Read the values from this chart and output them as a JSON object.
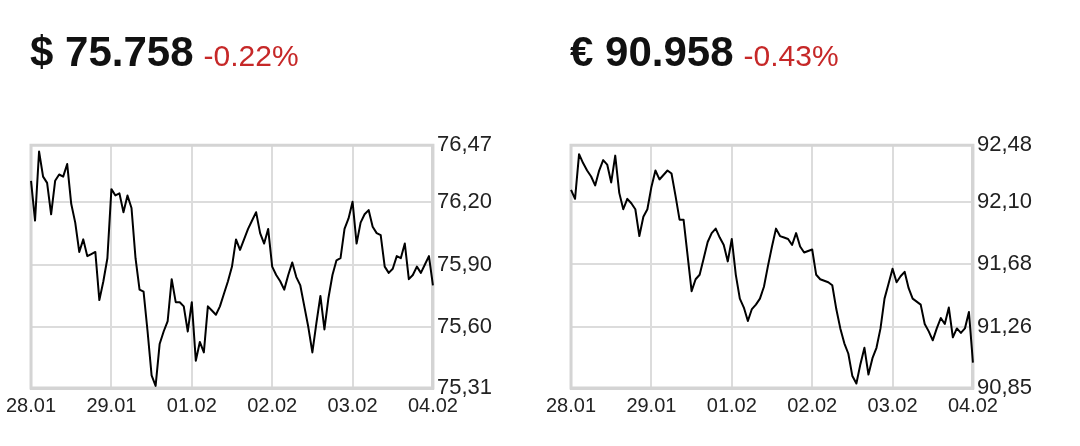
{
  "chart_data": [
    {
      "type": "line",
      "title": "$ 75.758",
      "subtitle": "-0.22%",
      "grid": true,
      "legend": false,
      "marker": "none",
      "categories": [
        "28.01",
        null,
        null,
        null,
        null,
        null,
        null,
        null,
        null,
        null,
        null,
        null,
        null,
        null,
        null,
        null,
        null,
        null,
        null,
        null,
        "29.01",
        null,
        null,
        null,
        null,
        null,
        null,
        null,
        null,
        null,
        null,
        null,
        null,
        null,
        null,
        null,
        null,
        null,
        null,
        null,
        "01.02",
        null,
        null,
        null,
        null,
        null,
        null,
        null,
        null,
        null,
        null,
        null,
        null,
        null,
        null,
        null,
        null,
        null,
        null,
        null,
        "02.02",
        null,
        null,
        null,
        null,
        null,
        null,
        null,
        null,
        null,
        null,
        null,
        null,
        null,
        null,
        null,
        null,
        null,
        null,
        null,
        "03.02",
        null,
        null,
        null,
        null,
        null,
        null,
        null,
        null,
        null,
        null,
        null,
        null,
        null,
        null,
        null,
        null,
        null,
        null,
        null,
        "04.02"
      ],
      "ylim": [
        75.31,
        76.47
      ],
      "yticks": [
        {
          "value": 75.31,
          "label": "75,31"
        },
        {
          "value": 75.6,
          "label": "75,60"
        },
        {
          "value": 75.9,
          "label": "75,90"
        },
        {
          "value": 76.2,
          "label": "76,20"
        },
        {
          "value": 76.47,
          "label": "76,47"
        }
      ],
      "series": [
        {
          "color": "#000000",
          "values": [
            76.3,
            76.11,
            76.44,
            76.32,
            76.29,
            76.14,
            76.3,
            76.33,
            76.32,
            76.38,
            76.19,
            76.1,
            75.96,
            76.02,
            75.94,
            75.95,
            75.96,
            75.73,
            75.82,
            75.93,
            76.26,
            76.23,
            76.24,
            76.15,
            76.23,
            76.17,
            75.93,
            75.78,
            75.77,
            75.58,
            75.37,
            75.32,
            75.52,
            75.58,
            75.63,
            75.83,
            75.72,
            75.72,
            75.7,
            75.58,
            75.72,
            75.44,
            75.53,
            75.48,
            75.7,
            75.68,
            75.66,
            75.7,
            75.76,
            75.82,
            75.89,
            76.02,
            75.97,
            76.02,
            76.07,
            76.11,
            76.15,
            76.05,
            76.0,
            76.07,
            75.89,
            75.85,
            75.82,
            75.78,
            75.85,
            75.91,
            75.84,
            75.8,
            75.7,
            75.6,
            75.48,
            75.62,
            75.75,
            75.59,
            75.74,
            75.85,
            75.92,
            75.93,
            76.07,
            76.12,
            76.2,
            76.0,
            76.1,
            76.14,
            76.16,
            76.08,
            76.05,
            76.04,
            75.89,
            75.86,
            75.88,
            75.94,
            75.93,
            76.0,
            75.83,
            75.85,
            75.89,
            75.86,
            75.9,
            75.94,
            75.8
          ]
        }
      ]
    },
    {
      "type": "line",
      "title": "€ 90.958",
      "subtitle": "-0.43%",
      "grid": true,
      "legend": false,
      "marker": "none",
      "categories": [
        "28.01",
        null,
        null,
        null,
        null,
        null,
        null,
        null,
        null,
        null,
        null,
        null,
        null,
        null,
        null,
        null,
        null,
        null,
        null,
        null,
        "29.01",
        null,
        null,
        null,
        null,
        null,
        null,
        null,
        null,
        null,
        null,
        null,
        null,
        null,
        null,
        null,
        null,
        null,
        null,
        null,
        "01.02",
        null,
        null,
        null,
        null,
        null,
        null,
        null,
        null,
        null,
        null,
        null,
        null,
        null,
        null,
        null,
        null,
        null,
        null,
        null,
        "02.02",
        null,
        null,
        null,
        null,
        null,
        null,
        null,
        null,
        null,
        null,
        null,
        null,
        null,
        null,
        null,
        null,
        null,
        null,
        null,
        "03.02",
        null,
        null,
        null,
        null,
        null,
        null,
        null,
        null,
        null,
        null,
        null,
        null,
        null,
        null,
        null,
        null,
        null,
        null,
        null,
        "04.02"
      ],
      "ylim": [
        90.85,
        92.48
      ],
      "yticks": [
        {
          "value": 90.85,
          "label": "90,85"
        },
        {
          "value": 91.26,
          "label": "91,26"
        },
        {
          "value": 91.68,
          "label": "91,68"
        },
        {
          "value": 92.1,
          "label": "92,10"
        },
        {
          "value": 92.48,
          "label": "92,48"
        }
      ],
      "series": [
        {
          "color": "#000000",
          "values": [
            92.18,
            92.12,
            92.42,
            92.36,
            92.31,
            92.27,
            92.21,
            92.31,
            92.38,
            92.35,
            92.23,
            92.41,
            92.16,
            92.05,
            92.12,
            92.09,
            92.05,
            91.87,
            92.0,
            92.05,
            92.2,
            92.31,
            92.25,
            92.28,
            92.31,
            92.29,
            92.14,
            91.98,
            91.98,
            91.74,
            91.5,
            91.58,
            91.61,
            91.72,
            91.83,
            91.89,
            91.92,
            91.86,
            91.81,
            91.7,
            91.85,
            91.61,
            91.45,
            91.39,
            91.3,
            91.38,
            91.41,
            91.45,
            91.53,
            91.67,
            91.8,
            91.92,
            91.87,
            91.86,
            91.85,
            91.81,
            91.89,
            91.8,
            91.76,
            91.77,
            91.78,
            91.61,
            91.58,
            91.57,
            91.56,
            91.54,
            91.38,
            91.25,
            91.15,
            91.08,
            90.93,
            90.88,
            91.01,
            91.12,
            90.94,
            91.05,
            91.12,
            91.25,
            91.45,
            91.55,
            91.65,
            91.56,
            91.6,
            91.63,
            91.52,
            91.45,
            91.43,
            91.41,
            91.28,
            91.23,
            91.17,
            91.25,
            91.32,
            91.28,
            91.39,
            91.19,
            91.25,
            91.22,
            91.25,
            91.36,
            91.02
          ]
        }
      ]
    }
  ]
}
